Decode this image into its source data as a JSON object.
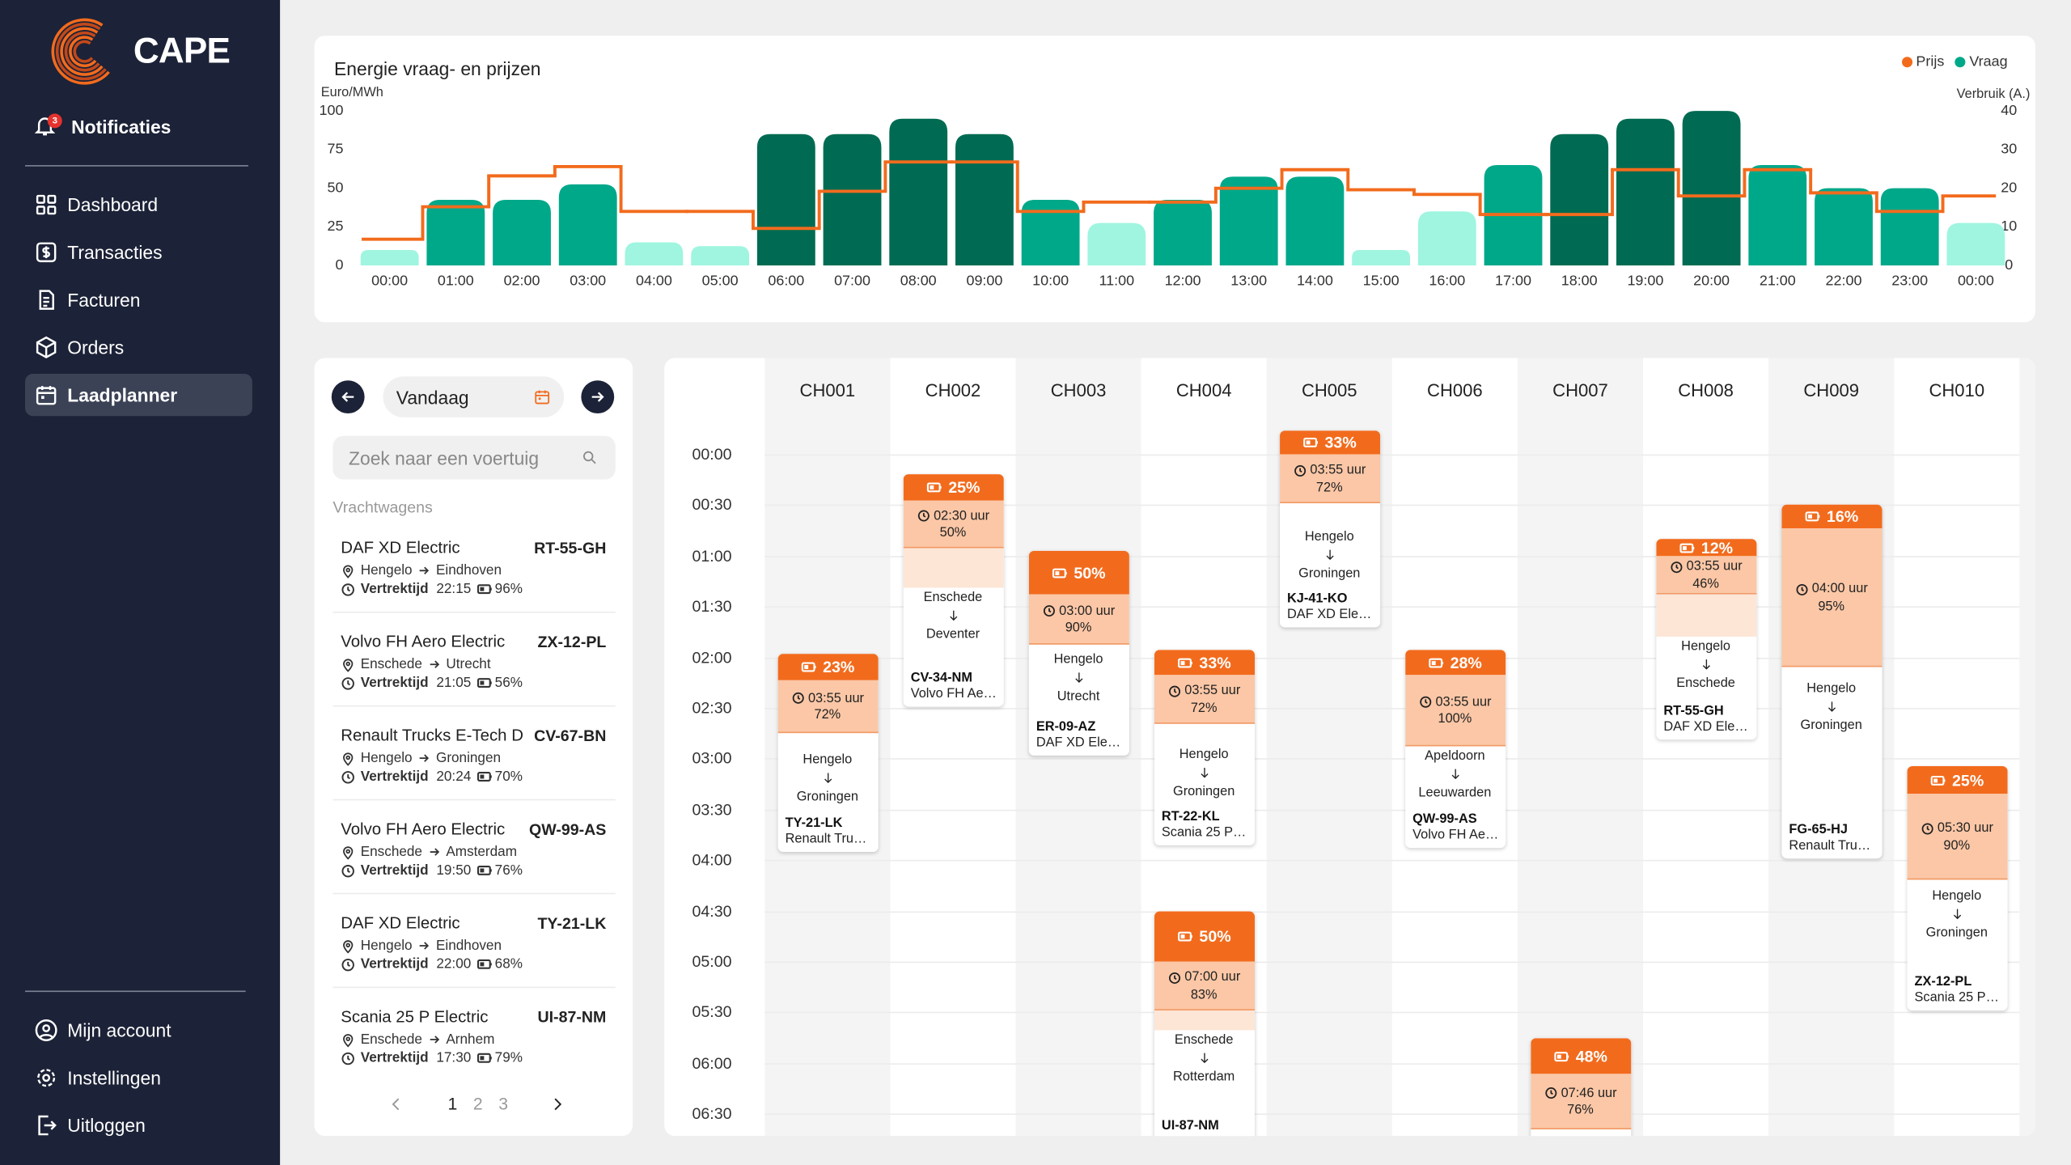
{
  "sidebar": {
    "logo": "CAPE",
    "notifications": {
      "label": "Notificaties",
      "count": 3
    },
    "nav": [
      {
        "label": "Dashboard"
      },
      {
        "label": "Transacties"
      },
      {
        "label": "Facturen"
      },
      {
        "label": "Orders"
      },
      {
        "label": "Laadplanner",
        "active": true
      }
    ],
    "account": [
      "Mijn account",
      "Instellingen",
      "Uitloggen"
    ]
  },
  "chart_data": {
    "type": "bar",
    "title": "Energie vraag- en prijzen",
    "y_label": "Euro/MWh",
    "y2_label": "Verbruik (A.)",
    "legend_position": "top-right",
    "categories": [
      "00:00",
      "01:00",
      "02:00",
      "03:00",
      "04:00",
      "05:00",
      "06:00",
      "07:00",
      "08:00",
      "09:00",
      "10:00",
      "11:00",
      "12:00",
      "13:00",
      "14:00",
      "15:00",
      "16:00",
      "17:00",
      "18:00",
      "19:00",
      "20:00",
      "21:00",
      "22:00",
      "23:00",
      "00:00"
    ],
    "series": [
      {
        "name": "Prijs",
        "type": "line",
        "step": true,
        "color": "#f26b1d",
        "values": [
          17,
          38,
          58,
          64,
          35,
          35,
          24,
          48,
          67,
          67,
          35,
          41,
          41,
          50,
          62,
          49,
          46,
          33,
          33,
          62,
          45,
          62,
          47,
          35,
          45
        ]
      },
      {
        "name": "Vraag",
        "type": "bar",
        "axis": "y2",
        "color": "#00a88a",
        "colors": [
          "#9ff5e0",
          "#00a88a",
          "#00a88a",
          "#00a88a",
          "#9ff5e0",
          "#9ff5e0",
          "#006b52",
          "#006b52",
          "#006b52",
          "#006b52",
          "#00a88a",
          "#9ff5e0",
          "#00a88a",
          "#00a88a",
          "#00a88a",
          "#9ff5e0",
          "#9ff5e0",
          "#00a88a",
          "#006b52",
          "#006b52",
          "#006b52",
          "#00a88a",
          "#00a88a",
          "#00a88a",
          "#9ff5e0"
        ],
        "values": [
          4,
          17,
          17,
          21,
          6,
          5,
          34,
          34,
          38,
          34,
          17,
          11,
          17,
          23,
          23,
          4,
          14,
          26,
          34,
          38,
          40,
          26,
          20,
          20,
          11
        ]
      }
    ],
    "ylim": [
      0,
      100
    ],
    "yticks": [
      0,
      25,
      50,
      75,
      100
    ],
    "y2lim": [
      0,
      40
    ],
    "y2ticks": [
      0,
      10,
      20,
      30,
      40
    ]
  },
  "planner": {
    "date_label": "Vandaag",
    "search_placeholder": "Zoek naar een voertuig",
    "section": "Vrachtwagens",
    "vehicles": [
      {
        "name": "DAF XD Electric",
        "plate": "RT-55-GH",
        "from": "Hengelo",
        "to": "Eindhoven",
        "departure_label": "Vertrektijd",
        "departure": "22:15",
        "battery": "96%"
      },
      {
        "name": "Volvo FH Aero Electric",
        "plate": "ZX-12-PL",
        "from": "Enschede",
        "to": "Utrecht",
        "departure_label": "Vertrektijd",
        "departure": "21:05",
        "battery": "56%"
      },
      {
        "name": "Renault Trucks E-Tech D",
        "plate": "CV-67-BN",
        "from": "Hengelo",
        "to": "Groningen",
        "departure_label": "Vertrektijd",
        "departure": "20:24",
        "battery": "70%"
      },
      {
        "name": "Volvo FH Aero Electric",
        "plate": "QW-99-AS",
        "from": "Enschede",
        "to": "Amsterdam",
        "departure_label": "Vertrektijd",
        "departure": "19:50",
        "battery": "76%"
      },
      {
        "name": "DAF XD Electric",
        "plate": "TY-21-LK",
        "from": "Hengelo",
        "to": "Eindhoven",
        "departure_label": "Vertrektijd",
        "departure": "22:00",
        "battery": "68%"
      },
      {
        "name": "Scania 25 P Electric",
        "plate": "UI-87-NM",
        "from": "Enschede",
        "to": "Arnhem",
        "departure_label": "Vertrektijd",
        "departure": "17:30",
        "battery": "79%"
      }
    ],
    "pages": [
      1,
      2,
      3
    ],
    "current_page": 1
  },
  "schedule": {
    "chargers": [
      "CH001",
      "CH002",
      "CH003",
      "CH004",
      "CH005",
      "CH006",
      "CH007",
      "CH008",
      "CH009",
      "CH010"
    ],
    "times": [
      "00:00",
      "00:30",
      "01:00",
      "01:30",
      "02:00",
      "02:30",
      "03:00",
      "03:30",
      "04:00",
      "04:30",
      "05:00",
      "05:30",
      "06:00",
      "06:30"
    ],
    "sessions": [
      {
        "battery": "23%",
        "duration": "03:55 uur",
        "target": "72%",
        "from": "Hengelo",
        "to": "Groningen",
        "plate": "TY-21-LK",
        "vehicle": "Renault Tru…"
      },
      {
        "battery": "25%",
        "duration": "02:30 uur",
        "target": "50%",
        "from": "Enschede",
        "to": "Deventer",
        "plate": "CV-34-NM",
        "vehicle": "Volvo FH Ae…"
      },
      {
        "battery": "50%",
        "duration": "03:00 uur",
        "target": "90%",
        "from": "Hengelo",
        "to": "Utrecht",
        "plate": "ER-09-AZ",
        "vehicle": "DAF XD Ele…"
      },
      {
        "battery": "33%",
        "duration": "03:55 uur",
        "target": "72%",
        "from": "Hengelo",
        "to": "Groningen",
        "plate": "RT-22-KL",
        "vehicle": "Scania 25 P…"
      },
      {
        "battery": "50%",
        "duration": "07:00 uur",
        "target": "83%",
        "from": "Enschede",
        "to": "Rotterdam",
        "plate": "UI-87-NM"
      },
      {
        "battery": "33%",
        "duration": "03:55 uur",
        "target": "72%",
        "from": "Hengelo",
        "to": "Groningen",
        "plate": "KJ-41-KO",
        "vehicle": "DAF XD Ele…"
      },
      {
        "battery": "28%",
        "duration": "03:55 uur",
        "target": "100%",
        "from": "Apeldoorn",
        "to": "Leeuwarden",
        "plate": "QW-99-AS",
        "vehicle": "Volvo FH Ae…"
      },
      {
        "battery": "48%",
        "duration": "07:46 uur",
        "target": "76%"
      },
      {
        "battery": "12%",
        "duration": "03:55 uur",
        "target": "46%",
        "from": "Hengelo",
        "to": "Enschede",
        "plate": "RT-55-GH",
        "vehicle": "DAF XD Ele…"
      },
      {
        "battery": "16%",
        "duration": "04:00 uur",
        "target": "95%",
        "from": "Hengelo",
        "to": "Groningen",
        "plate": "FG-65-HJ",
        "vehicle": "Renault Tru…"
      },
      {
        "battery": "25%",
        "duration": "05:30 uur",
        "target": "90%",
        "from": "Hengelo",
        "to": "Groningen",
        "plate": "ZX-12-PL",
        "vehicle": "Scania 25 P…"
      }
    ]
  }
}
